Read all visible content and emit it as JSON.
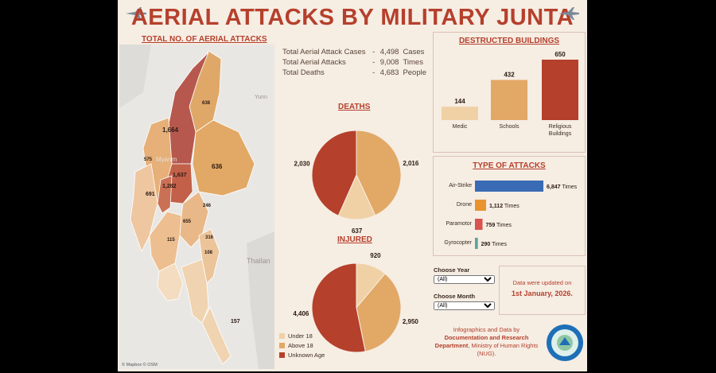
{
  "header": {
    "title": "AERIAL ATTACKS BY MILITARY JUNTA",
    "left_icon": "fighter-jet-icon",
    "right_icon": "fighter-jet-icon"
  },
  "map": {
    "title": "TOTAL NO. OF AERIAL ATTACKS",
    "labels": [
      "638",
      "1,664",
      "575",
      "636",
      "1,637",
      "1,282",
      "691",
      "246",
      "655",
      "316",
      "115",
      "108",
      "157"
    ],
    "place_labels": {
      "myanmar": "Myanm",
      "yunnan": "Yunn",
      "thailand": "Thailan"
    },
    "credits": "© Mapbox  © OSM"
  },
  "stats": {
    "rows": [
      {
        "label": "Total Aerial Attack Cases",
        "sep": "-",
        "value": "4,498",
        "unit": "Cases"
      },
      {
        "label": "Total Aerial Attacks",
        "sep": "-",
        "value": "9,008",
        "unit": "Times"
      },
      {
        "label": "Total Deaths",
        "sep": "-",
        "value": "4,683",
        "unit": "People"
      }
    ]
  },
  "deaths": {
    "title": "DEATHS",
    "labels": [
      "2,016",
      "637",
      "2,030"
    ]
  },
  "injured": {
    "title": "INJURED",
    "labels": [
      "920",
      "2,950",
      "4,406"
    ]
  },
  "legend": {
    "items": [
      "Under 18",
      "Above 18",
      "Unknown Age"
    ]
  },
  "buildings": {
    "title": "DESTRUCTED BUILDINGS"
  },
  "attacks": {
    "title": "TYPE OF ATTACKS",
    "unit": "Times"
  },
  "filters": {
    "year_label": "Choose Year",
    "year_value": "(All)",
    "month_label": "Choose Month",
    "month_value": "(All)"
  },
  "update": {
    "line1": "Data were updated on",
    "date": "1st January, 2026."
  },
  "footer": {
    "line1": "Infographics and Data by",
    "bold": "Documentation and Research Department",
    "rest": ", Ministry of Human Rights (NUG).",
    "logo_icon": "ministry-seal-icon"
  },
  "colors": {
    "under18": "#f0d1a5",
    "above18": "#e2a866",
    "unknown": "#b5402c",
    "drone": "#e8932e",
    "airstrike": "#3a6bb4",
    "paramotor": "#d9534f",
    "gyrocopter": "#5aa59c"
  },
  "chart_data": [
    {
      "type": "pie",
      "title": "DEATHS",
      "categories": [
        "Above 18",
        "Under 18",
        "Unknown Age"
      ],
      "values": [
        2016,
        637,
        2030
      ]
    },
    {
      "type": "pie",
      "title": "INJURED",
      "categories": [
        "Under 18",
        "Above 18",
        "Unknown Age"
      ],
      "values": [
        920,
        2950,
        4406
      ]
    },
    {
      "type": "bar",
      "title": "DESTRUCTED BUILDINGS",
      "categories": [
        "Medic",
        "Schools",
        "Religious Buildings"
      ],
      "values": [
        144,
        432,
        650
      ]
    },
    {
      "type": "bar",
      "orientation": "horizontal",
      "title": "TYPE OF ATTACKS",
      "categories": [
        "Air-Strike",
        "Drone",
        "Paramotor",
        "Gyrocopter"
      ],
      "values": [
        6847,
        1112,
        759,
        290
      ]
    }
  ]
}
